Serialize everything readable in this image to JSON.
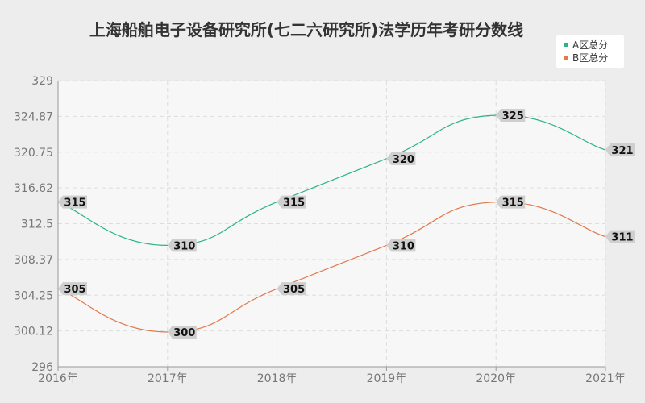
{
  "chart_data": {
    "type": "line",
    "title": "上海船舶电子设备研究所(七二六研究所)法学历年考研分数线",
    "xlabel": "",
    "ylabel": "",
    "categories": [
      "2016年",
      "2017年",
      "2018年",
      "2019年",
      "2020年",
      "2021年"
    ],
    "ylim": [
      296,
      329
    ],
    "yticks": [
      "296",
      "300.12",
      "304.25",
      "308.37",
      "312.5",
      "316.62",
      "320.75",
      "324.87",
      "329"
    ],
    "grid": true,
    "legend_position": "top-right",
    "series": [
      {
        "name": "A区总分",
        "color": "#2bb48c",
        "values": [
          315,
          310,
          315,
          320,
          325,
          321
        ]
      },
      {
        "name": "B区总分",
        "color": "#e2794a",
        "values": [
          305,
          300,
          305,
          310,
          315,
          311
        ]
      }
    ]
  }
}
